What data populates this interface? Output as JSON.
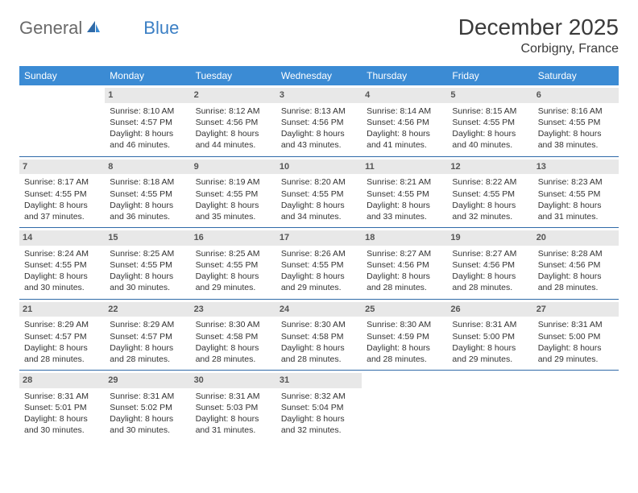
{
  "brand": {
    "part1": "General",
    "part2": "Blue"
  },
  "title": "December 2025",
  "location": "Corbigny, France",
  "colors": {
    "header_bg": "#3b8bd4",
    "header_text": "#ffffff",
    "daybar_bg": "#e8e8e8",
    "divider": "#2f6aa8",
    "logo_gray": "#6a6a6a",
    "logo_blue": "#3b7fc4"
  },
  "weekdays": [
    "Sunday",
    "Monday",
    "Tuesday",
    "Wednesday",
    "Thursday",
    "Friday",
    "Saturday"
  ],
  "weeks": [
    [
      null,
      {
        "n": "1",
        "sr": "Sunrise: 8:10 AM",
        "ss": "Sunset: 4:57 PM",
        "d1": "Daylight: 8 hours",
        "d2": "and 46 minutes."
      },
      {
        "n": "2",
        "sr": "Sunrise: 8:12 AM",
        "ss": "Sunset: 4:56 PM",
        "d1": "Daylight: 8 hours",
        "d2": "and 44 minutes."
      },
      {
        "n": "3",
        "sr": "Sunrise: 8:13 AM",
        "ss": "Sunset: 4:56 PM",
        "d1": "Daylight: 8 hours",
        "d2": "and 43 minutes."
      },
      {
        "n": "4",
        "sr": "Sunrise: 8:14 AM",
        "ss": "Sunset: 4:56 PM",
        "d1": "Daylight: 8 hours",
        "d2": "and 41 minutes."
      },
      {
        "n": "5",
        "sr": "Sunrise: 8:15 AM",
        "ss": "Sunset: 4:55 PM",
        "d1": "Daylight: 8 hours",
        "d2": "and 40 minutes."
      },
      {
        "n": "6",
        "sr": "Sunrise: 8:16 AM",
        "ss": "Sunset: 4:55 PM",
        "d1": "Daylight: 8 hours",
        "d2": "and 38 minutes."
      }
    ],
    [
      {
        "n": "7",
        "sr": "Sunrise: 8:17 AM",
        "ss": "Sunset: 4:55 PM",
        "d1": "Daylight: 8 hours",
        "d2": "and 37 minutes."
      },
      {
        "n": "8",
        "sr": "Sunrise: 8:18 AM",
        "ss": "Sunset: 4:55 PM",
        "d1": "Daylight: 8 hours",
        "d2": "and 36 minutes."
      },
      {
        "n": "9",
        "sr": "Sunrise: 8:19 AM",
        "ss": "Sunset: 4:55 PM",
        "d1": "Daylight: 8 hours",
        "d2": "and 35 minutes."
      },
      {
        "n": "10",
        "sr": "Sunrise: 8:20 AM",
        "ss": "Sunset: 4:55 PM",
        "d1": "Daylight: 8 hours",
        "d2": "and 34 minutes."
      },
      {
        "n": "11",
        "sr": "Sunrise: 8:21 AM",
        "ss": "Sunset: 4:55 PM",
        "d1": "Daylight: 8 hours",
        "d2": "and 33 minutes."
      },
      {
        "n": "12",
        "sr": "Sunrise: 8:22 AM",
        "ss": "Sunset: 4:55 PM",
        "d1": "Daylight: 8 hours",
        "d2": "and 32 minutes."
      },
      {
        "n": "13",
        "sr": "Sunrise: 8:23 AM",
        "ss": "Sunset: 4:55 PM",
        "d1": "Daylight: 8 hours",
        "d2": "and 31 minutes."
      }
    ],
    [
      {
        "n": "14",
        "sr": "Sunrise: 8:24 AM",
        "ss": "Sunset: 4:55 PM",
        "d1": "Daylight: 8 hours",
        "d2": "and 30 minutes."
      },
      {
        "n": "15",
        "sr": "Sunrise: 8:25 AM",
        "ss": "Sunset: 4:55 PM",
        "d1": "Daylight: 8 hours",
        "d2": "and 30 minutes."
      },
      {
        "n": "16",
        "sr": "Sunrise: 8:25 AM",
        "ss": "Sunset: 4:55 PM",
        "d1": "Daylight: 8 hours",
        "d2": "and 29 minutes."
      },
      {
        "n": "17",
        "sr": "Sunrise: 8:26 AM",
        "ss": "Sunset: 4:55 PM",
        "d1": "Daylight: 8 hours",
        "d2": "and 29 minutes."
      },
      {
        "n": "18",
        "sr": "Sunrise: 8:27 AM",
        "ss": "Sunset: 4:56 PM",
        "d1": "Daylight: 8 hours",
        "d2": "and 28 minutes."
      },
      {
        "n": "19",
        "sr": "Sunrise: 8:27 AM",
        "ss": "Sunset: 4:56 PM",
        "d1": "Daylight: 8 hours",
        "d2": "and 28 minutes."
      },
      {
        "n": "20",
        "sr": "Sunrise: 8:28 AM",
        "ss": "Sunset: 4:56 PM",
        "d1": "Daylight: 8 hours",
        "d2": "and 28 minutes."
      }
    ],
    [
      {
        "n": "21",
        "sr": "Sunrise: 8:29 AM",
        "ss": "Sunset: 4:57 PM",
        "d1": "Daylight: 8 hours",
        "d2": "and 28 minutes."
      },
      {
        "n": "22",
        "sr": "Sunrise: 8:29 AM",
        "ss": "Sunset: 4:57 PM",
        "d1": "Daylight: 8 hours",
        "d2": "and 28 minutes."
      },
      {
        "n": "23",
        "sr": "Sunrise: 8:30 AM",
        "ss": "Sunset: 4:58 PM",
        "d1": "Daylight: 8 hours",
        "d2": "and 28 minutes."
      },
      {
        "n": "24",
        "sr": "Sunrise: 8:30 AM",
        "ss": "Sunset: 4:58 PM",
        "d1": "Daylight: 8 hours",
        "d2": "and 28 minutes."
      },
      {
        "n": "25",
        "sr": "Sunrise: 8:30 AM",
        "ss": "Sunset: 4:59 PM",
        "d1": "Daylight: 8 hours",
        "d2": "and 28 minutes."
      },
      {
        "n": "26",
        "sr": "Sunrise: 8:31 AM",
        "ss": "Sunset: 5:00 PM",
        "d1": "Daylight: 8 hours",
        "d2": "and 29 minutes."
      },
      {
        "n": "27",
        "sr": "Sunrise: 8:31 AM",
        "ss": "Sunset: 5:00 PM",
        "d1": "Daylight: 8 hours",
        "d2": "and 29 minutes."
      }
    ],
    [
      {
        "n": "28",
        "sr": "Sunrise: 8:31 AM",
        "ss": "Sunset: 5:01 PM",
        "d1": "Daylight: 8 hours",
        "d2": "and 30 minutes."
      },
      {
        "n": "29",
        "sr": "Sunrise: 8:31 AM",
        "ss": "Sunset: 5:02 PM",
        "d1": "Daylight: 8 hours",
        "d2": "and 30 minutes."
      },
      {
        "n": "30",
        "sr": "Sunrise: 8:31 AM",
        "ss": "Sunset: 5:03 PM",
        "d1": "Daylight: 8 hours",
        "d2": "and 31 minutes."
      },
      {
        "n": "31",
        "sr": "Sunrise: 8:32 AM",
        "ss": "Sunset: 5:04 PM",
        "d1": "Daylight: 8 hours",
        "d2": "and 32 minutes."
      },
      null,
      null,
      null
    ]
  ]
}
